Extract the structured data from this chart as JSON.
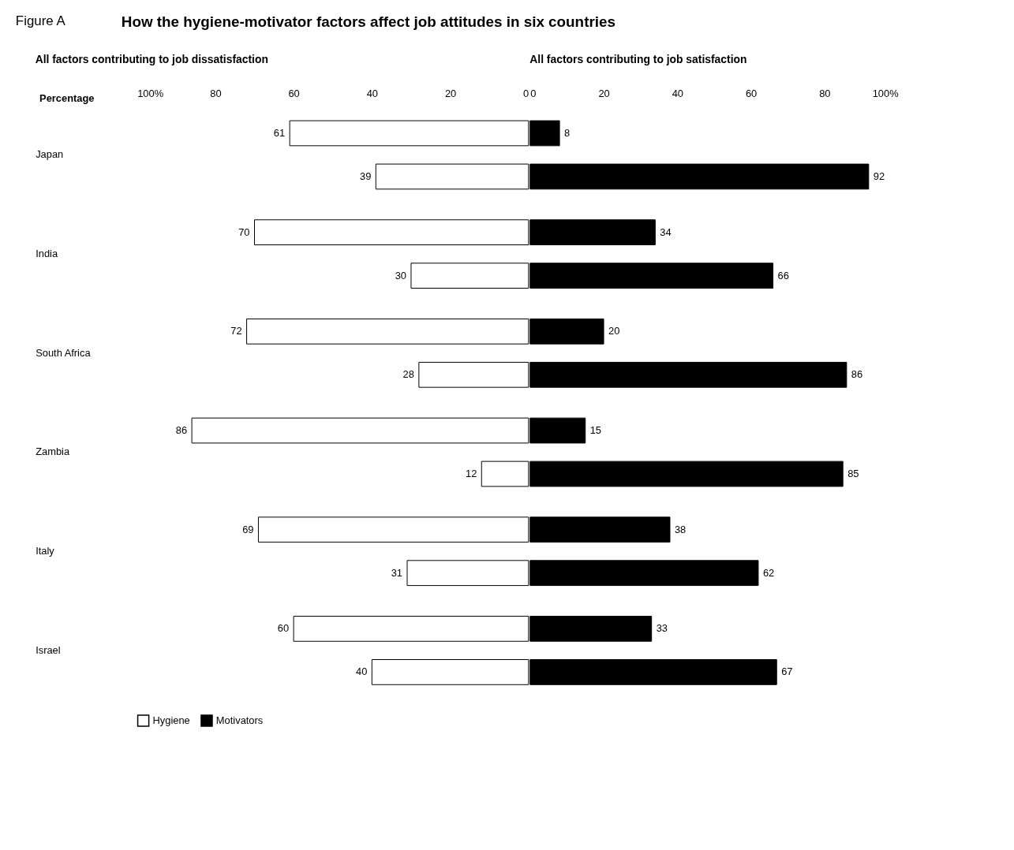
{
  "chart_data": [
    {
      "type": "bar",
      "orientation": "horizontal",
      "title": "How the hygiene-motivator factors affect job attitudes in six countries",
      "annotations": [
        "Figure A"
      ],
      "subtitle": "All factors contributing to job dissatisfaction",
      "xlabel": "Percentage",
      "categories": [
        "Japan",
        "India",
        "South Africa",
        "Zambia",
        "Italy",
        "Israel"
      ],
      "series": [
        {
          "name": "Hygiene",
          "color": "#ffffff",
          "values": [
            61,
            70,
            72,
            86,
            69,
            60
          ]
        },
        {
          "color": "#ffffff",
          "values": [
            39,
            30,
            28,
            12,
            31,
            40
          ]
        }
      ],
      "xlim": [
        100,
        0
      ],
      "xticks": [
        {
          "value": 100,
          "label": "100%"
        },
        80,
        60,
        40,
        20,
        0
      ],
      "data_labels": true,
      "grid": false,
      "legend": "bottom"
    },
    {
      "type": "bar",
      "orientation": "horizontal",
      "subtitle": "All factors contributing to job satisfaction",
      "series": [
        {
          "name": "Motivators",
          "color": "#000000",
          "values": [
            8,
            34,
            20,
            15,
            38,
            33
          ]
        },
        {
          "color": "#000000",
          "values": [
            92,
            66,
            86,
            85,
            62,
            67
          ]
        }
      ],
      "xlim": [
        0,
        100
      ],
      "xticks": [
        0,
        20,
        40,
        60,
        80,
        {
          "value": 100,
          "label": "100%"
        }
      ],
      "data_labels": true,
      "grid": false,
      "legend": "bottom",
      "tick_labels": "x"
    }
  ]
}
